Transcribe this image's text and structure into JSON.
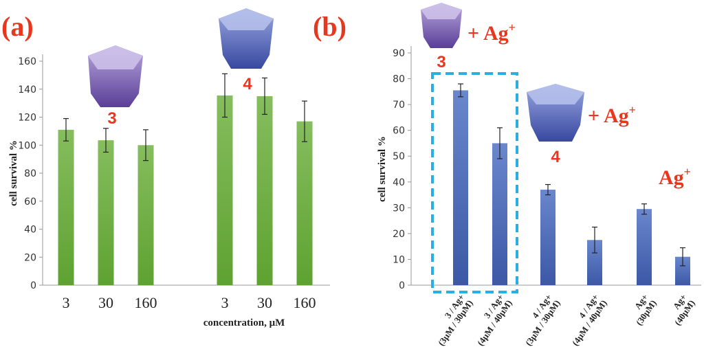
{
  "chart_data": [
    {
      "type": "bar",
      "panel_label": "(a)",
      "ylabel": "cell survival %",
      "xlabel": "concentration, μM",
      "ylim": [
        0,
        160
      ],
      "yticks": [
        0,
        20,
        40,
        60,
        80,
        100,
        120,
        140,
        160
      ],
      "categories": [
        "3",
        "30",
        "160",
        "3",
        "30",
        "160"
      ],
      "groups": [
        {
          "name": "3",
          "indices": [
            0,
            1,
            2
          ]
        },
        {
          "name": "4",
          "indices": [
            3,
            4,
            5
          ]
        }
      ],
      "values": [
        111,
        103.5,
        100,
        135.5,
        135,
        117
      ],
      "errors": [
        8,
        8.5,
        11,
        15.5,
        13,
        14.5
      ],
      "color": "#6aab3c"
    },
    {
      "type": "bar",
      "panel_label": "(b)",
      "ylabel": "cell survival %",
      "ylim": [
        0,
        90
      ],
      "yticks": [
        0,
        10,
        20,
        30,
        40,
        50,
        60,
        70,
        80,
        90
      ],
      "categories": [
        [
          "3 / Ag+",
          "(3μM / 30μM)"
        ],
        [
          "3 / Ag+",
          "(4μM / 40μM)"
        ],
        [
          "4 / Ag+",
          "(3μM / 30μM)"
        ],
        [
          "4 / Ag+",
          "(4μM / 40μM)"
        ],
        [
          "Ag+",
          "(30μM)"
        ],
        [
          "Ag+",
          "(40μM)"
        ]
      ],
      "values": [
        75.5,
        55,
        37,
        17.5,
        29.5,
        11
      ],
      "errors": [
        2.5,
        6,
        2,
        5,
        2,
        3.5
      ],
      "color": "#4a67b5",
      "annotations": {
        "cup3": "3",
        "cup4": "4",
        "plus_ag": "+ Ag",
        "ag": "Ag",
        "sup": "+"
      },
      "highlight_box_color": "#29aee6"
    }
  ]
}
